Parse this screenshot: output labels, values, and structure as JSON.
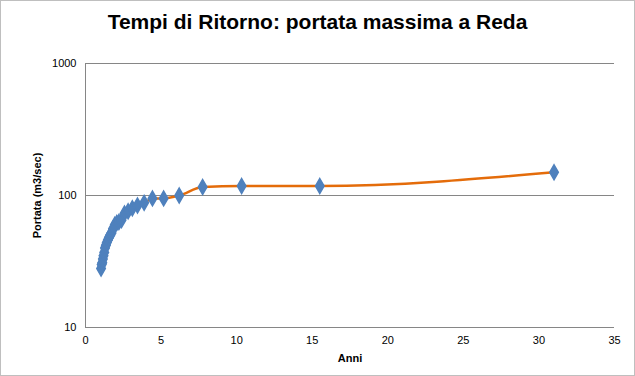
{
  "chart_data": {
    "type": "line",
    "title": "Tempi di Ritorno: portata massima a Reda",
    "x_label": "Anni",
    "y_label": "Portata (m3/sec)",
    "x": [
      1.03,
      1.07,
      1.11,
      1.15,
      1.19,
      1.24,
      1.29,
      1.35,
      1.41,
      1.48,
      1.55,
      1.63,
      1.72,
      1.82,
      1.94,
      2.07,
      2.21,
      2.38,
      2.58,
      2.82,
      3.1,
      3.44,
      3.88,
      4.43,
      5.17,
      6.2,
      7.75,
      10.33,
      15.5,
      31
    ],
    "series": [
      {
        "name": "Portata",
        "color": "#e46c0a",
        "marker": "diamond",
        "line_style": "solid",
        "values": [
          28,
          30,
          31,
          33,
          35,
          37,
          40,
          42,
          44,
          46,
          48,
          50,
          52,
          56,
          60,
          62,
          63,
          65,
          73,
          76,
          80,
          84,
          88,
          95,
          95,
          100,
          116,
          118,
          118,
          150
        ]
      }
    ],
    "xlim": [
      0,
      35
    ],
    "xticks": [
      0,
      5,
      10,
      15,
      20,
      25,
      30,
      35
    ],
    "ylim": [
      10,
      1000
    ],
    "yticks": [
      10,
      100,
      1000
    ],
    "log": "y",
    "grid": true
  }
}
